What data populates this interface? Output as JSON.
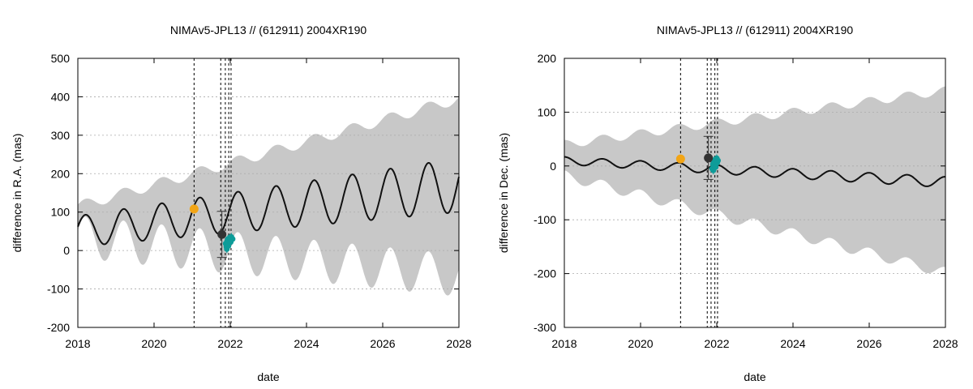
{
  "chart_data": [
    {
      "type": "line",
      "title": "NIMAv5-JPL13 // (612911) 2004XR190",
      "xlabel": "date",
      "ylabel": "difference in R.A. (mas)",
      "xlim": [
        2018,
        2028
      ],
      "ylim": [
        -200,
        500
      ],
      "xticks": [
        "2018",
        "2020",
        "2022",
        "2024",
        "2026",
        "2028"
      ],
      "yticks": [
        "-200",
        "-100",
        "0",
        "100",
        "200",
        "300",
        "400",
        "500"
      ],
      "grid": "horizontal dotted",
      "vlines": [
        2021.05,
        2021.75,
        2021.87,
        2021.96,
        2022.02
      ],
      "model": {
        "name": "NIMAv5 - JPL13 difference",
        "trend_start": 50,
        "trend_slope": 12,
        "amplitude_start": 40,
        "amplitude_slope": 3,
        "period_years": 1,
        "peak_phase_year": 2018.2
      },
      "band": {
        "name": "uncertainty envelope",
        "low_start": 35,
        "low_slope": -10,
        "low_ripple": 55,
        "high_start": 115,
        "high_slope": 28,
        "high_ripple": 14
      },
      "points": [
        {
          "name": "orange observation",
          "x": 2021.05,
          "y": 108,
          "color": "#f2a516",
          "size": 5.5
        },
        {
          "name": "dark observation",
          "x": 2021.78,
          "y": 42,
          "color": "#333333",
          "size": 5.5,
          "err": 60
        }
      ],
      "cluster": {
        "name": "recent observations",
        "color": "#0e9c99",
        "points": [
          [
            2021.88,
            18
          ],
          [
            2021.9,
            10
          ],
          [
            2021.92,
            25
          ],
          [
            2021.94,
            30
          ],
          [
            2021.96,
            20
          ],
          [
            2021.98,
            33
          ],
          [
            2022.0,
            28
          ],
          [
            2022.03,
            35
          ],
          [
            2022.06,
            30
          ],
          [
            2021.91,
            4
          ],
          [
            2021.95,
            12
          ],
          [
            2022.01,
            22
          ]
        ]
      }
    },
    {
      "type": "line",
      "title": "NIMAv5-JPL13 // (612911) 2004XR190",
      "xlabel": "date",
      "ylabel": "difference in Dec. (mas)",
      "xlim": [
        2018,
        2028
      ],
      "ylim": [
        -300,
        200
      ],
      "xticks": [
        "2018",
        "2020",
        "2022",
        "2024",
        "2026",
        "2028"
      ],
      "yticks": [
        "-300",
        "-200",
        "-100",
        "0",
        "100",
        "200"
      ],
      "grid": "horizontal dotted",
      "vlines": [
        2021.05,
        2021.75,
        2021.85,
        2021.95,
        2022.02
      ],
      "model": {
        "name": "NIMAv5 - JPL13 difference",
        "trend_start": 10,
        "trend_slope": -4,
        "amplitude_start": 7,
        "amplitude_slope": 0.3,
        "period_years": 1,
        "peak_phase_year": 2018.0
      },
      "band": {
        "name": "uncertainty envelope",
        "low_start": -18,
        "low_slope": -18,
        "low_ripple": 10,
        "high_start": 40,
        "high_slope": 10,
        "high_ripple": 8
      },
      "points": [
        {
          "name": "orange observation",
          "x": 2021.05,
          "y": 13,
          "color": "#f2a516",
          "size": 5.5
        },
        {
          "name": "dark observation",
          "x": 2021.78,
          "y": 15,
          "color": "#333333",
          "size": 5.5,
          "err": 40
        }
      ],
      "cluster": {
        "name": "recent observations",
        "color": "#0e9c99",
        "points": [
          [
            2021.88,
            -5
          ],
          [
            2021.9,
            3
          ],
          [
            2021.92,
            10
          ],
          [
            2021.94,
            8
          ],
          [
            2021.96,
            5
          ],
          [
            2021.98,
            12
          ],
          [
            2022.0,
            14
          ],
          [
            2022.03,
            10
          ],
          [
            2021.91,
            -8
          ],
          [
            2021.97,
            -2
          ],
          [
            2022.01,
            6
          ]
        ]
      }
    }
  ]
}
